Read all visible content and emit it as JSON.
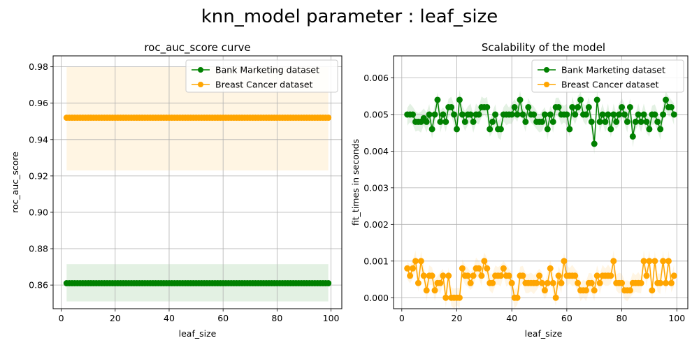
{
  "figure_title": "knn_model parameter : leaf_size",
  "colors": {
    "bank": "#008000",
    "breast": "#ffa500",
    "grid": "#b0b0b0",
    "axes": "#000000"
  },
  "chart_data": [
    {
      "type": "line",
      "title": "roc_auc_score curve",
      "xlabel": "leaf_size",
      "ylabel": "roc_auc_score",
      "xlim": [
        -3,
        104
      ],
      "ylim": [
        0.847,
        0.986
      ],
      "xticks": [
        0,
        20,
        40,
        60,
        80,
        100
      ],
      "yticks": [
        0.86,
        0.88,
        0.9,
        0.92,
        0.94,
        0.96,
        0.98
      ],
      "ytick_labels": [
        "0.86",
        "0.88",
        "0.90",
        "0.92",
        "0.94",
        "0.96",
        "0.98"
      ],
      "grid": true,
      "legend": "top-right",
      "x": {
        "start": 2,
        "end": 99,
        "step": 1
      },
      "series": [
        {
          "name": "Bank Marketing dataset",
          "color": "#008000",
          "values_const": 0.861,
          "band": [
            0.851,
            0.8715
          ]
        },
        {
          "name": "Breast Cancer dataset",
          "color": "#ffa500",
          "values_const": 0.952,
          "band": [
            0.923,
            0.98
          ]
        }
      ]
    },
    {
      "type": "line",
      "title": "Scalability of the model",
      "xlabel": "leaf_size",
      "ylabel": "fit_times in seconds",
      "xlim": [
        -3,
        104
      ],
      "ylim": [
        -0.0003,
        0.0066
      ],
      "xticks": [
        0,
        20,
        40,
        60,
        80,
        100
      ],
      "yticks": [
        0,
        0.001,
        0.002,
        0.003,
        0.004,
        0.005,
        0.006
      ],
      "ytick_labels": [
        "0.000",
        "0.001",
        "0.002",
        "0.003",
        "0.004",
        "0.005",
        "0.006"
      ],
      "grid": true,
      "legend": "top-right",
      "x": {
        "start": 2,
        "end": 99,
        "step": 1
      },
      "series": [
        {
          "name": "Bank Marketing dataset",
          "color": "#008000",
          "band_halfwidth": 0.0003,
          "values": [
            0.005,
            0.005,
            0.005,
            0.0048,
            0.0048,
            0.0048,
            0.0049,
            0.0048,
            0.005,
            0.0046,
            0.005,
            0.0054,
            0.0048,
            0.005,
            0.0048,
            0.0052,
            0.0052,
            0.005,
            0.0046,
            0.0054,
            0.005,
            0.0048,
            0.005,
            0.005,
            0.0048,
            0.005,
            0.005,
            0.0052,
            0.0052,
            0.0052,
            0.0046,
            0.0048,
            0.005,
            0.0046,
            0.0046,
            0.005,
            0.005,
            0.005,
            0.005,
            0.0052,
            0.005,
            0.0054,
            0.005,
            0.0048,
            0.0052,
            0.005,
            0.005,
            0.0048,
            0.0048,
            0.0048,
            0.005,
            0.0046,
            0.005,
            0.0048,
            0.0052,
            0.0052,
            0.005,
            0.005,
            0.005,
            0.0046,
            0.0052,
            0.005,
            0.0052,
            0.0054,
            0.005,
            0.005,
            0.0052,
            0.0048,
            0.0042,
            0.0054,
            0.0048,
            0.005,
            0.0048,
            0.005,
            0.0046,
            0.005,
            0.0048,
            0.005,
            0.0052,
            0.005,
            0.0048,
            0.0052,
            0.0044,
            0.0048,
            0.005,
            0.0048,
            0.005,
            0.0048,
            0.0046,
            0.005,
            0.005,
            0.0048,
            0.0046,
            0.005,
            0.0054,
            0.0052,
            0.0052,
            0.005
          ]
        },
        {
          "name": "Breast Cancer dataset",
          "color": "#ffa500",
          "band_halfwidth": 0.0003,
          "values": [
            0.0008,
            0.0006,
            0.0008,
            0.001,
            0.0004,
            0.001,
            0.0006,
            0.0002,
            0.0006,
            0.0006,
            0.0002,
            0.0004,
            0.0004,
            0.0006,
            0.0,
            0.0006,
            0.0,
            0.0,
            0.0,
            0.0,
            0.0008,
            0.0006,
            0.0006,
            0.0004,
            0.0006,
            0.0008,
            0.0008,
            0.0006,
            0.001,
            0.0008,
            0.0004,
            0.0004,
            0.0006,
            0.0006,
            0.0006,
            0.0008,
            0.0006,
            0.0006,
            0.0004,
            0.0,
            0.0,
            0.0006,
            0.0006,
            0.0004,
            0.0004,
            0.0004,
            0.0004,
            0.0004,
            0.0006,
            0.0004,
            0.0002,
            0.0004,
            0.0008,
            0.0004,
            0.0,
            0.0006,
            0.0004,
            0.001,
            0.0006,
            0.0006,
            0.0006,
            0.0006,
            0.0004,
            0.0002,
            0.0002,
            0.0002,
            0.0004,
            0.0004,
            0.0002,
            0.0006,
            0.0004,
            0.0006,
            0.0006,
            0.0006,
            0.0006,
            0.001,
            0.0004,
            0.0004,
            0.0004,
            0.0002,
            0.0002,
            0.0002,
            0.0004,
            0.0004,
            0.0004,
            0.0004,
            0.001,
            0.0006,
            0.001,
            0.0002,
            0.001,
            0.0004,
            0.0004,
            0.001,
            0.0004,
            0.001,
            0.0004,
            0.0006
          ]
        }
      ]
    }
  ]
}
